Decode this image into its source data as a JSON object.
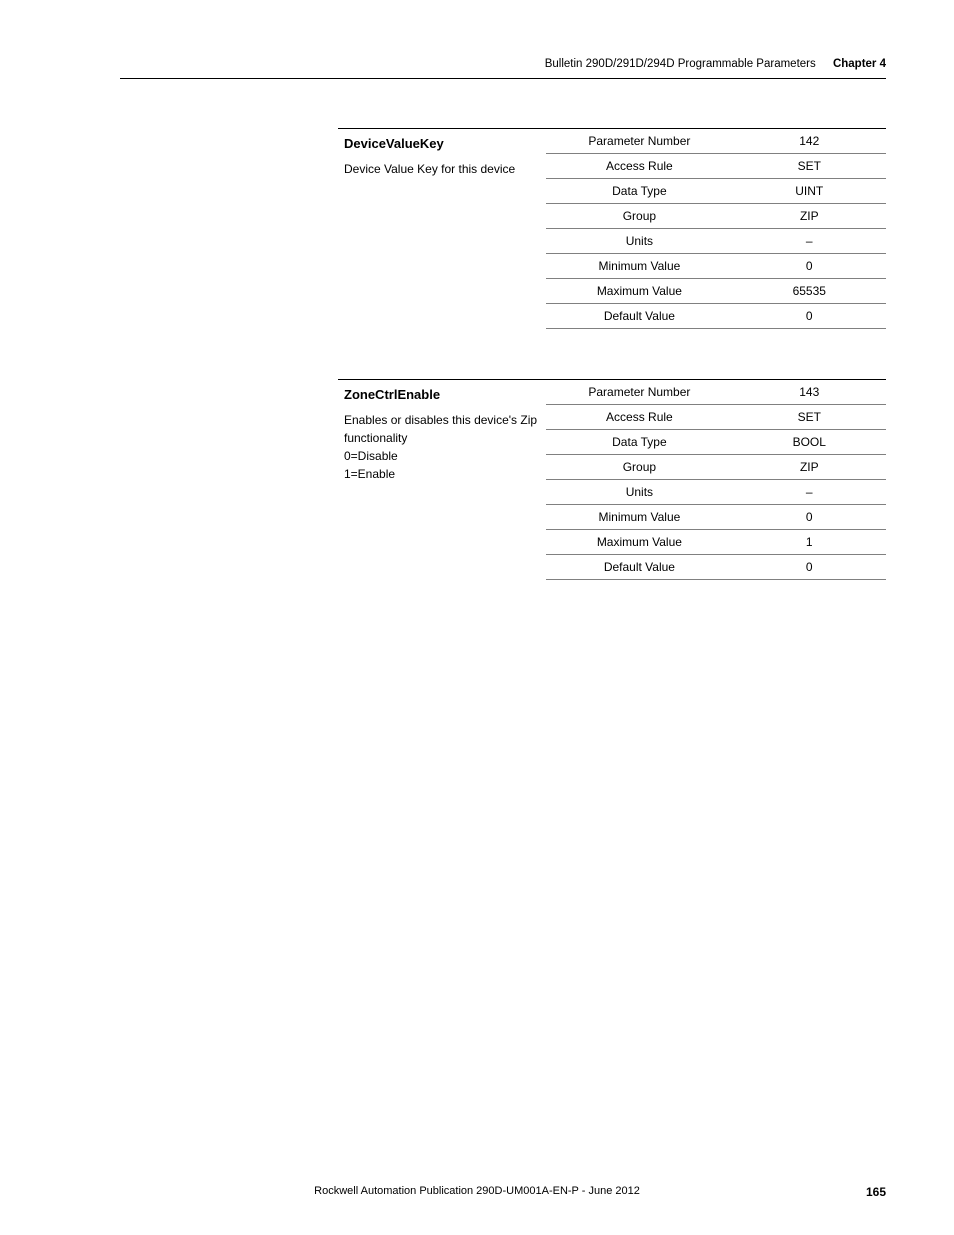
{
  "header": {
    "breadcrumb": "Bulletin 290D/291D/294D Programmable Parameters",
    "chapter": "Chapter 4"
  },
  "tables": [
    {
      "name": "DeviceValueKey",
      "description": "Device Value Key for this device",
      "rows": [
        {
          "label": "Parameter Number",
          "value": "142"
        },
        {
          "label": "Access Rule",
          "value": "SET"
        },
        {
          "label": "Data Type",
          "value": "UINT"
        },
        {
          "label": "Group",
          "value": "ZIP"
        },
        {
          "label": "Units",
          "value": "–"
        },
        {
          "label": "Minimum Value",
          "value": "0"
        },
        {
          "label": "Maximum Value",
          "value": "65535"
        },
        {
          "label": "Default Value",
          "value": "0"
        }
      ]
    },
    {
      "name": "ZoneCtrlEnable",
      "description": "Enables or disables this device's Zip functionality\n0=Disable\n1=Enable",
      "rows": [
        {
          "label": "Parameter Number",
          "value": "143"
        },
        {
          "label": "Access Rule",
          "value": "SET"
        },
        {
          "label": "Data Type",
          "value": "BOOL"
        },
        {
          "label": "Group",
          "value": "ZIP"
        },
        {
          "label": "Units",
          "value": "–"
        },
        {
          "label": "Minimum Value",
          "value": "0"
        },
        {
          "label": "Maximum Value",
          "value": "1"
        },
        {
          "label": "Default Value",
          "value": "0"
        }
      ]
    }
  ],
  "footer": {
    "publication": "Rockwell Automation Publication 290D-UM001A-EN-P - June 2012",
    "page": "165"
  }
}
